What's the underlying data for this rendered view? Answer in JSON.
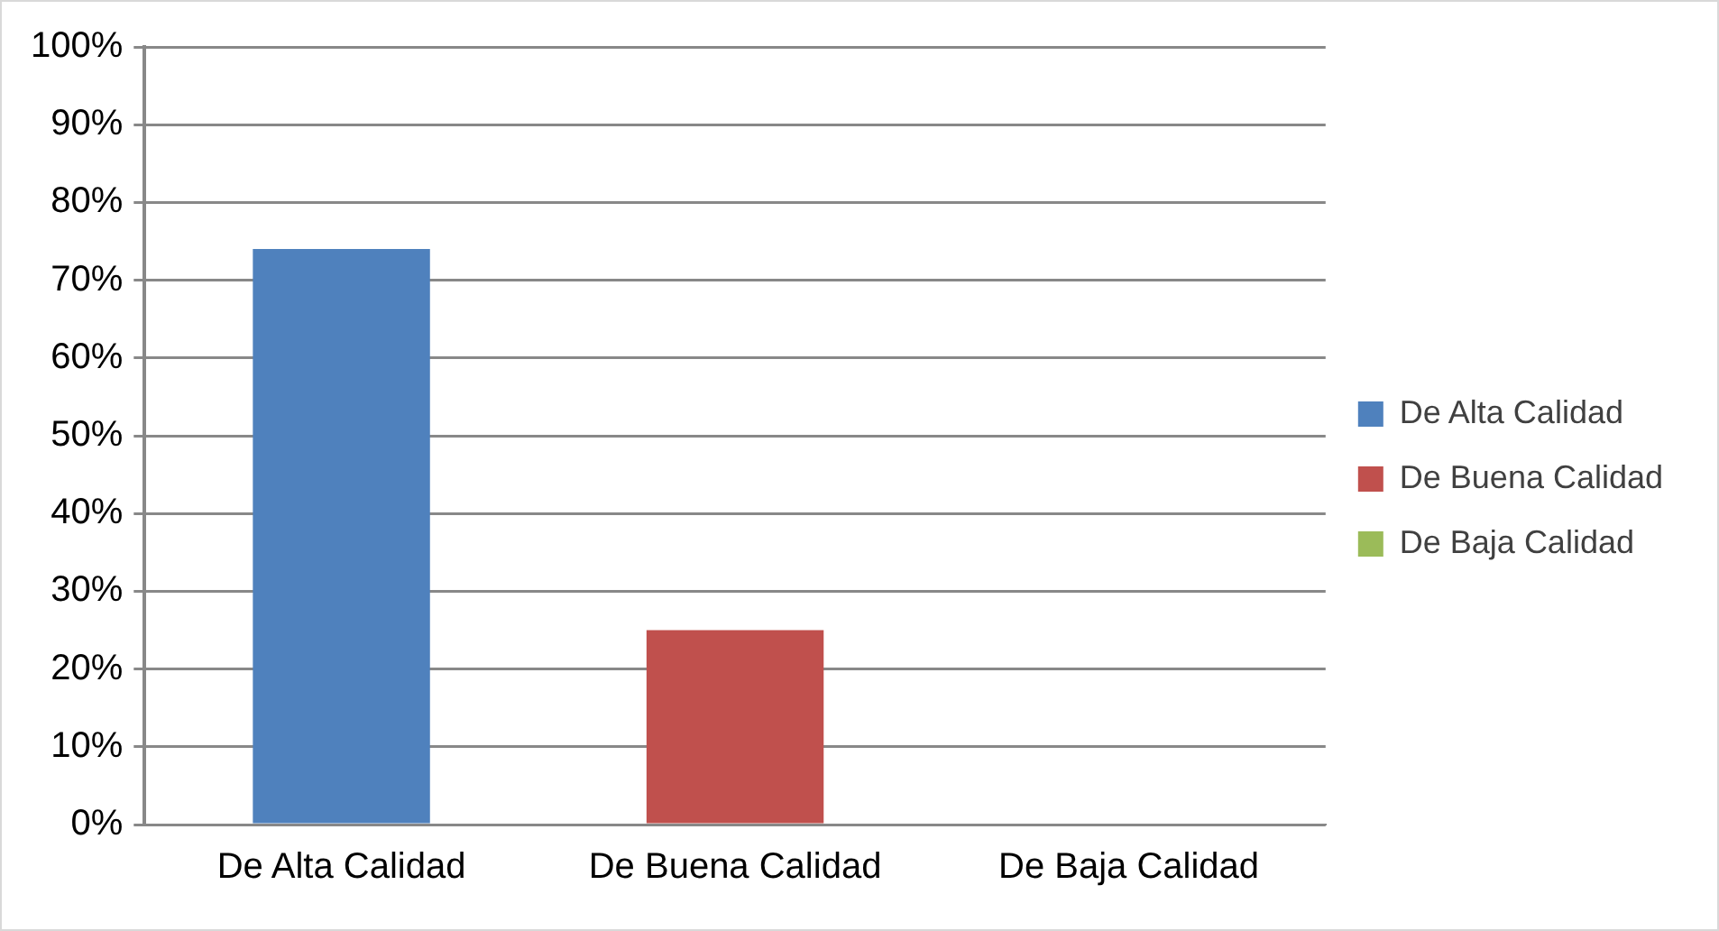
{
  "chart_data": {
    "type": "bar",
    "categories": [
      "De Alta Calidad",
      "De Buena Calidad",
      "De Baja Calidad"
    ],
    "series": [
      {
        "name": "De Alta Calidad",
        "color": "#4f81bd",
        "values": [
          74,
          null,
          null
        ]
      },
      {
        "name": "De Buena Calidad",
        "color": "#c0504d",
        "values": [
          null,
          25,
          null
        ]
      },
      {
        "name": "De Baja Calidad",
        "color": "#9bbb59",
        "values": [
          null,
          null,
          0
        ]
      }
    ],
    "ylim": [
      0,
      100
    ],
    "yticks": [
      {
        "value": 0,
        "label": "0%"
      },
      {
        "value": 10,
        "label": "10%"
      },
      {
        "value": 20,
        "label": "20%"
      },
      {
        "value": 30,
        "label": "30%"
      },
      {
        "value": 40,
        "label": "40%"
      },
      {
        "value": 50,
        "label": "50%"
      },
      {
        "value": 60,
        "label": "60%"
      },
      {
        "value": 70,
        "label": "70%"
      },
      {
        "value": 80,
        "label": "80%"
      },
      {
        "value": 90,
        "label": "90%"
      },
      {
        "value": 100,
        "label": "100%"
      }
    ],
    "grid": "y",
    "legend": "right"
  }
}
